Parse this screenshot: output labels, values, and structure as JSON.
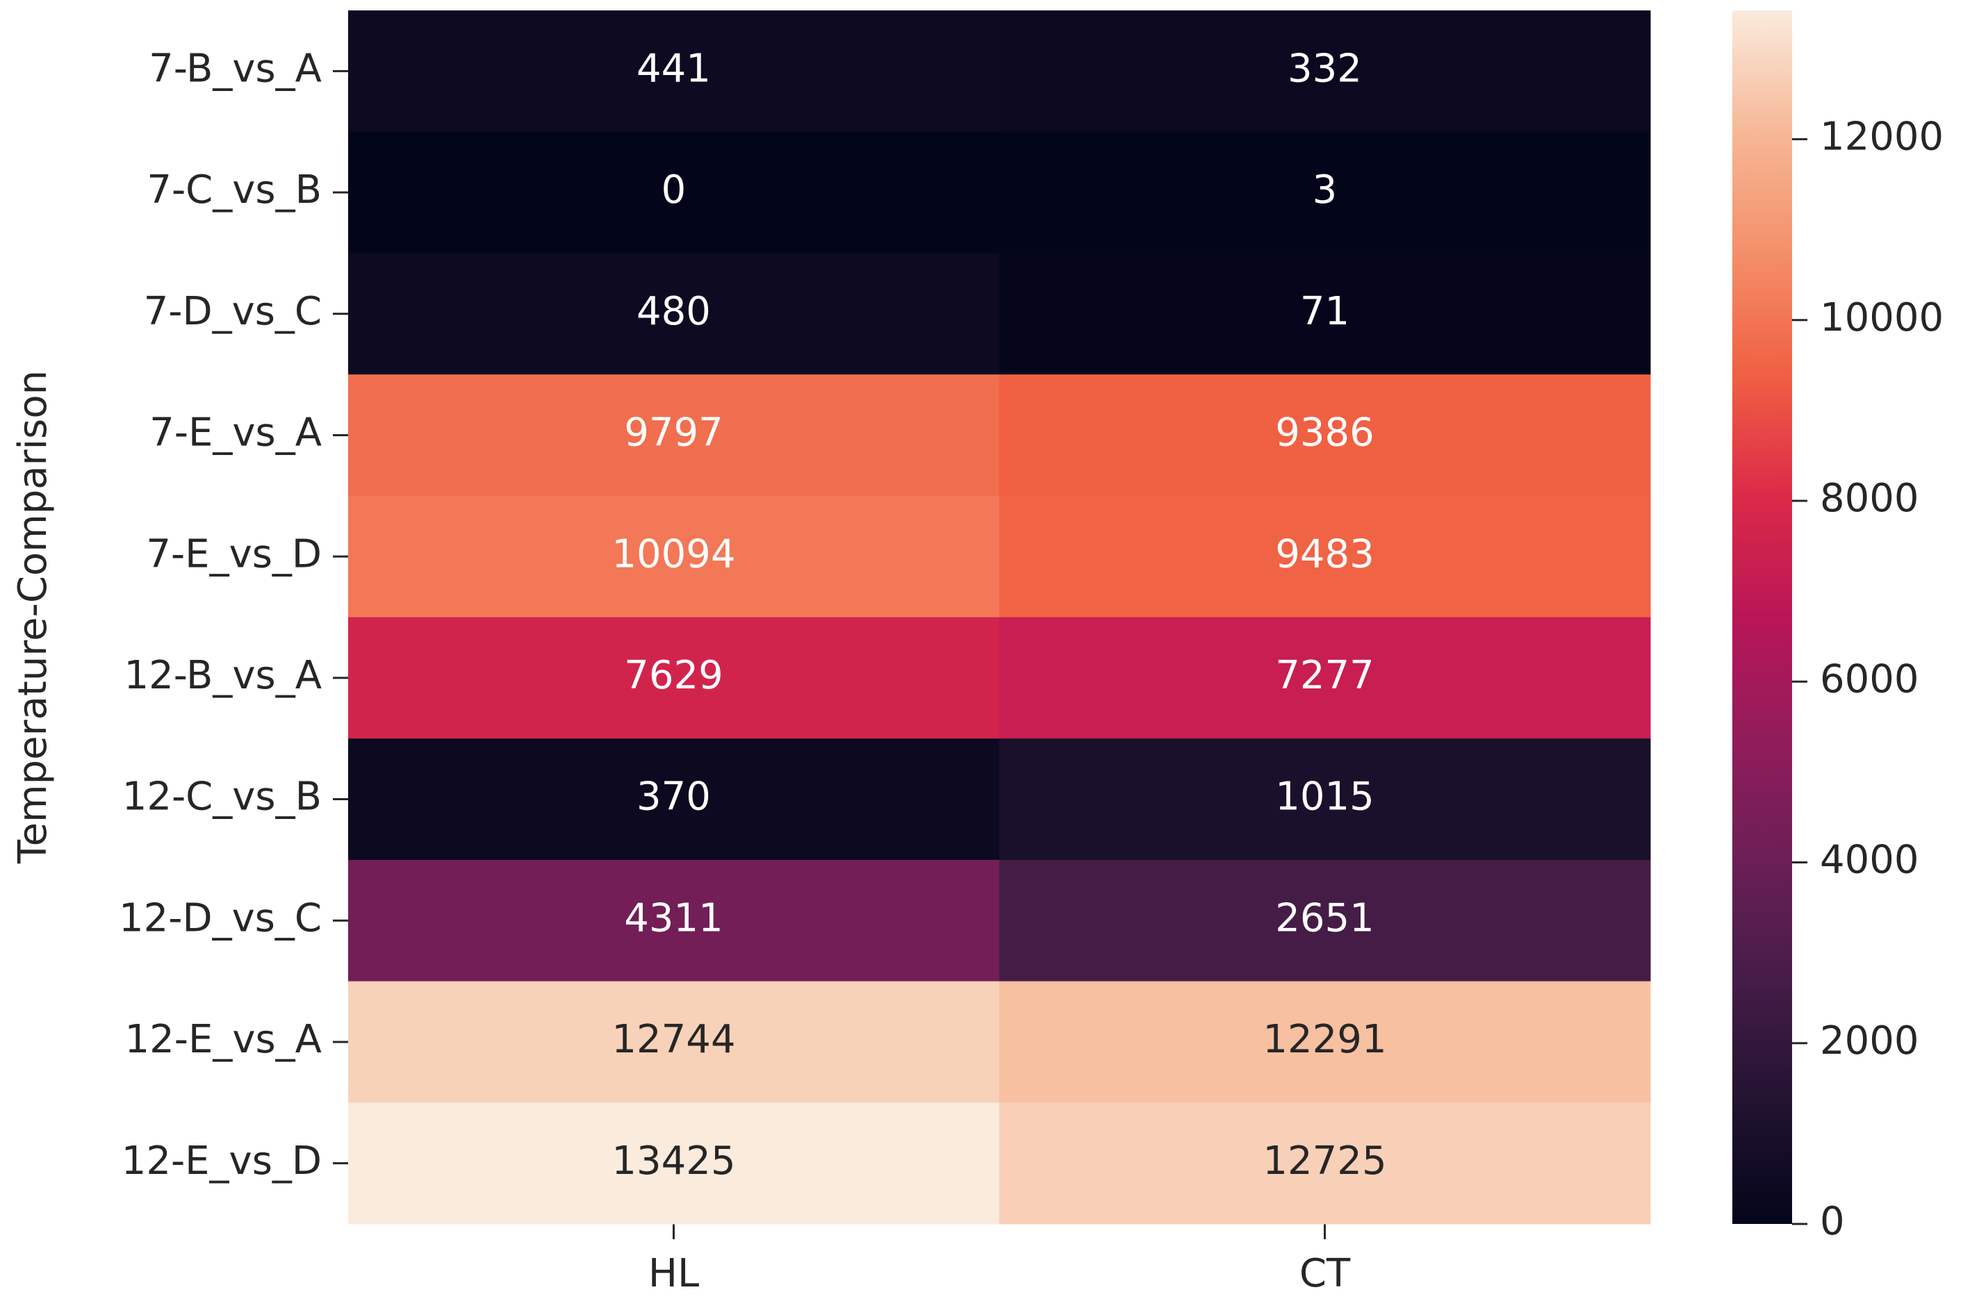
{
  "chart_data": {
    "type": "heatmap",
    "y_label": "Temperature-Comparison",
    "categories": [
      "7-B_vs_A",
      "7-C_vs_B",
      "7-D_vs_C",
      "7-E_vs_A",
      "7-E_vs_D",
      "12-B_vs_A",
      "12-C_vs_B",
      "12-D_vs_C",
      "12-E_vs_A",
      "12-E_vs_D"
    ],
    "series": [
      {
        "name": "HL",
        "values": [
          441,
          0,
          480,
          9797,
          10094,
          7629,
          370,
          4311,
          12744,
          13425
        ]
      },
      {
        "name": "CT",
        "values": [
          332,
          3,
          71,
          9386,
          9483,
          7277,
          1015,
          2651,
          12291,
          12725
        ]
      }
    ],
    "colormap": [
      "#03051a",
      "#221331",
      "#451c47",
      "#6b1f56",
      "#921c5b",
      "#b91657",
      "#dc2a48",
      "#f06043",
      "#f48f69",
      "#f6b896",
      "#faebdd"
    ],
    "zlim": [
      0,
      13425
    ],
    "zticks": [
      0,
      2000,
      4000,
      6000,
      8000,
      10000,
      12000
    ]
  }
}
